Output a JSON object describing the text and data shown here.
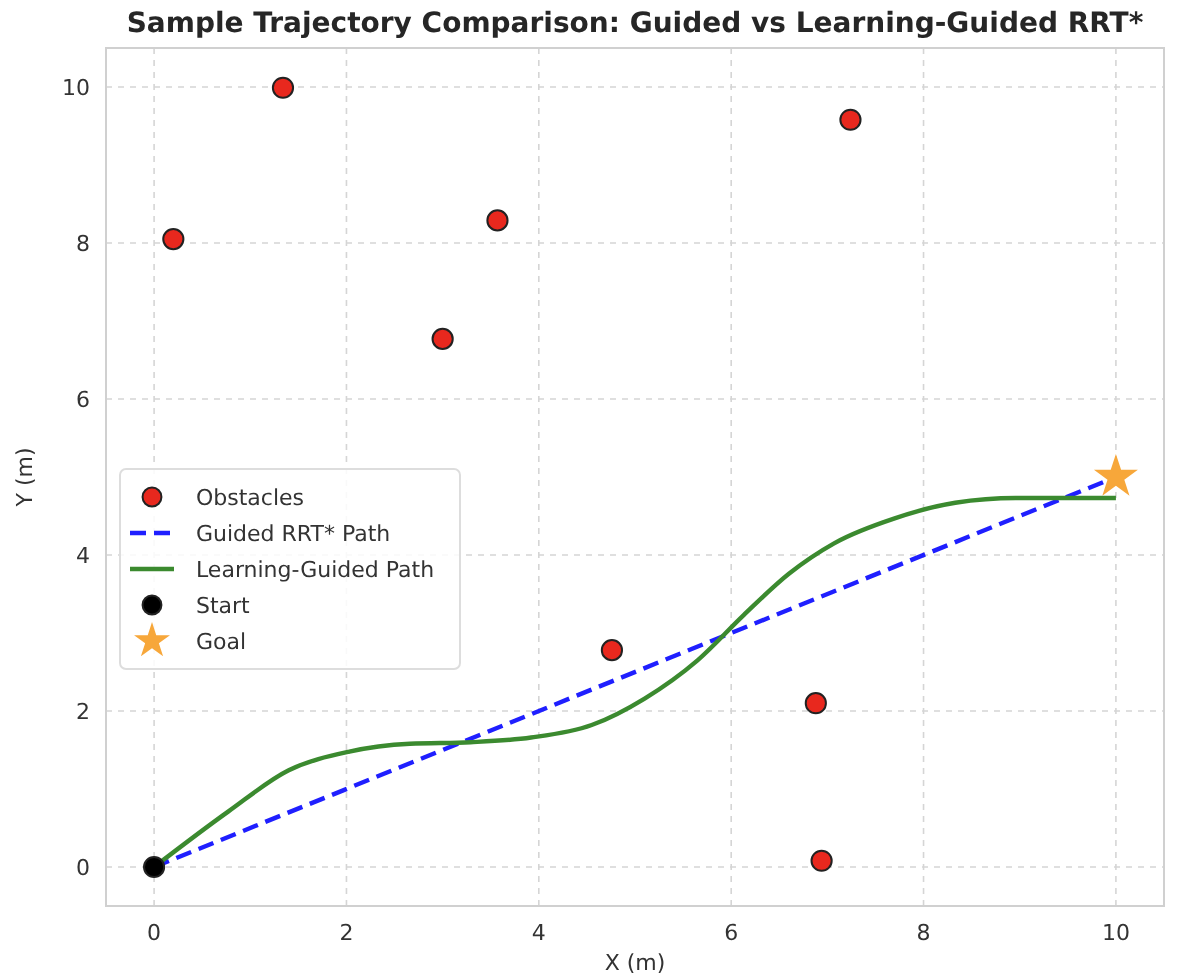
{
  "chart_data": {
    "type": "scatter",
    "title": "Sample Trajectory Comparison: Guided vs Learning-Guided RRT*",
    "xlabel": "X (m)",
    "ylabel": "Y (m)",
    "xlim": [
      -0.5,
      10.5
    ],
    "ylim": [
      -0.5,
      10.5
    ],
    "xticks": [
      0,
      2,
      4,
      6,
      8,
      10
    ],
    "yticks": [
      0,
      2,
      4,
      6,
      8,
      10
    ],
    "grid": true,
    "legend": "left",
    "series": [
      {
        "name": "Obstacles",
        "type": "scatter",
        "marker": "circle",
        "color": "#e8281e",
        "x": [
          0.2,
          1.34,
          3.57,
          3.0,
          7.24,
          4.76,
          6.88,
          6.94
        ],
        "values": [
          8.05,
          9.99,
          8.29,
          6.77,
          9.58,
          2.78,
          2.1,
          0.08
        ]
      },
      {
        "name": "Guided RRT* Path",
        "type": "line",
        "line_style": "dashed",
        "marker": "none",
        "color": "#1f1fff",
        "x": [
          0,
          10
        ],
        "values": [
          0,
          5
        ]
      },
      {
        "name": "Learning-Guided Path",
        "type": "line",
        "line_style": "solid",
        "marker": "none",
        "color": "#3b8a2f",
        "x": [
          0,
          0.77,
          1.4,
          2.03,
          2.66,
          3.29,
          3.92,
          4.55,
          5.1,
          5.65,
          6.13,
          6.6,
          7.07,
          7.7,
          8.33,
          8.96,
          10
        ],
        "values": [
          0,
          0.71,
          1.24,
          1.48,
          1.58,
          1.6,
          1.66,
          1.82,
          2.16,
          2.65,
          3.23,
          3.76,
          4.15,
          4.47,
          4.67,
          4.73,
          4.73
        ]
      },
      {
        "name": "Start",
        "type": "scatter",
        "marker": "circle",
        "color": "#000000",
        "x": [
          0
        ],
        "values": [
          0
        ]
      },
      {
        "name": "Goal",
        "type": "scatter",
        "marker": "star",
        "color": "#f7a73a",
        "x": [
          10
        ],
        "values": [
          5
        ]
      }
    ]
  }
}
